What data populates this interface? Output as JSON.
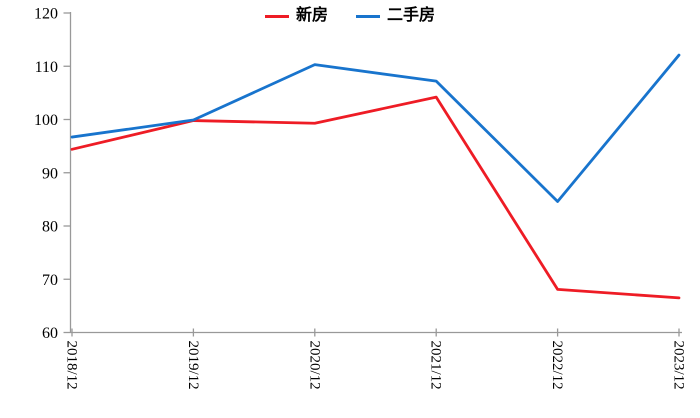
{
  "chart_data": {
    "type": "line",
    "categories": [
      "2018/12",
      "2019/12",
      "2020/12",
      "2021/12",
      "2022/12",
      "2023/12"
    ],
    "series": [
      {
        "name": "新房",
        "color": "#ee1c25",
        "values": [
          94.4,
          99.8,
          99.3,
          104.2,
          68.1,
          66.5
        ]
      },
      {
        "name": "二手房",
        "color": "#1874cd",
        "values": [
          96.7,
          99.9,
          110.3,
          107.2,
          84.6,
          112.1
        ]
      }
    ],
    "ylim": [
      60,
      120
    ],
    "yticks": [
      60,
      70,
      80,
      90,
      100,
      110,
      120
    ],
    "xlabel": "",
    "ylabel": "",
    "legend_position": "top-center",
    "grid": false,
    "x_label_rotation_deg": 90,
    "axis_color": "#999999",
    "text_color": "#000000",
    "background_color": "#ffffff"
  }
}
